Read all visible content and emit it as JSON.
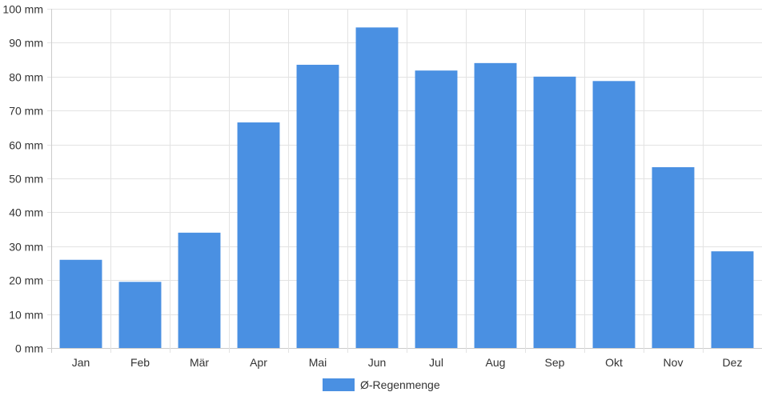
{
  "chart_data": {
    "type": "bar",
    "categories": [
      "Jan",
      "Feb",
      "Mär",
      "Apr",
      "Mai",
      "Jun",
      "Jul",
      "Aug",
      "Sep",
      "Okt",
      "Nov",
      "Dez"
    ],
    "series": [
      {
        "name": "Ø-Regenmenge",
        "values": [
          26,
          19.5,
          34,
          66.5,
          83.5,
          94.5,
          81.8,
          84,
          80,
          78.7,
          53.3,
          28.5
        ],
        "color": "#4a90e2"
      }
    ],
    "y_unit": "mm",
    "ylim": [
      0,
      100
    ],
    "y_ticks": [
      0,
      10,
      20,
      30,
      40,
      50,
      60,
      70,
      80,
      90,
      100
    ],
    "y_tick_labels": [
      "0 mm",
      "10 mm",
      "20 mm",
      "30 mm",
      "40 mm",
      "50 mm",
      "60 mm",
      "70 mm",
      "80 mm",
      "90 mm",
      "100 mm"
    ],
    "grid": true,
    "legend_position": "bottom"
  }
}
